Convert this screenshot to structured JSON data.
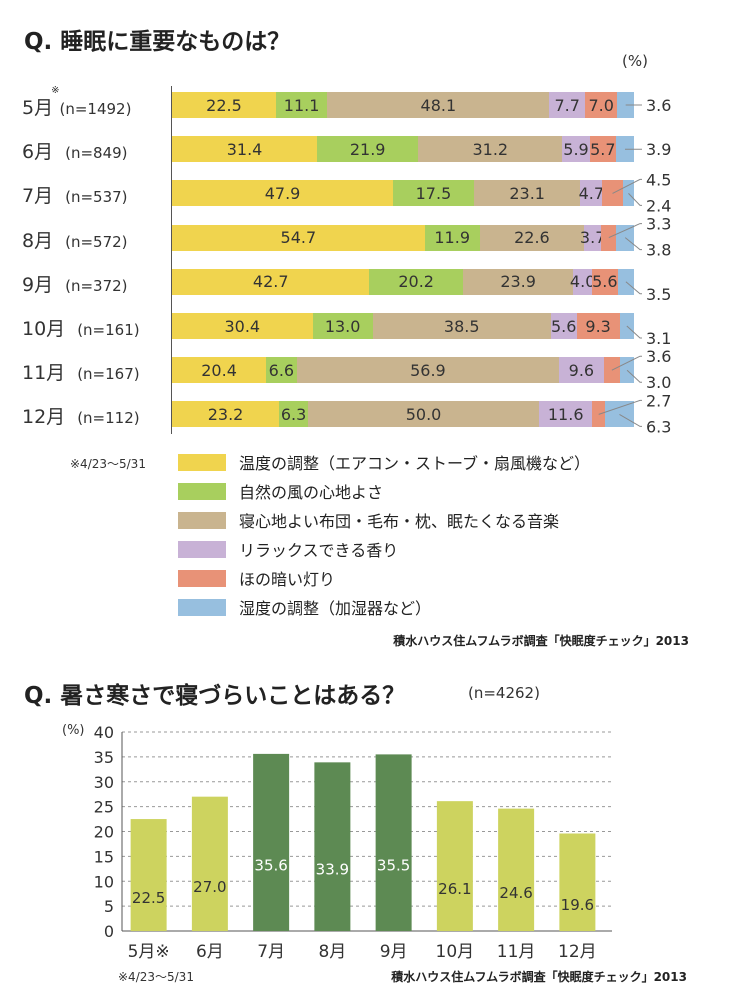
{
  "chart_data": [
    {
      "type": "bar",
      "orientation": "horizontal-stacked-100",
      "title": "Q. 睡眠に重要なものは？",
      "unit_label": "(%)",
      "rows": [
        {
          "month": "5月",
          "mark": "※",
          "n": "(n=1492)",
          "values": [
            22.5,
            11.1,
            48.1,
            7.7,
            7.0,
            3.6
          ]
        },
        {
          "month": "6月",
          "mark": "",
          "n": "(n=849)",
          "values": [
            31.4,
            21.9,
            31.2,
            5.9,
            5.7,
            3.9
          ]
        },
        {
          "month": "7月",
          "mark": "",
          "n": "(n=537)",
          "values": [
            47.9,
            17.5,
            23.1,
            4.7,
            4.5,
            2.4
          ]
        },
        {
          "month": "8月",
          "mark": "",
          "n": "(n=572)",
          "values": [
            54.7,
            11.9,
            22.6,
            3.7,
            3.3,
            3.8
          ]
        },
        {
          "month": "9月",
          "mark": "",
          "n": "(n=372)",
          "values": [
            42.7,
            20.2,
            23.9,
            4.0,
            5.6,
            3.5
          ]
        },
        {
          "month": "10月",
          "mark": "",
          "n": "(n=161)",
          "values": [
            30.4,
            13.0,
            38.5,
            5.6,
            9.3,
            3.1
          ]
        },
        {
          "month": "11月",
          "mark": "",
          "n": "(n=167)",
          "values": [
            20.4,
            6.6,
            56.9,
            9.6,
            3.6,
            3.0
          ]
        },
        {
          "month": "12月",
          "mark": "",
          "n": "(n=112)",
          "values": [
            23.2,
            6.3,
            50.0,
            11.6,
            2.7,
            6.3
          ]
        }
      ],
      "series": [
        {
          "name": "温度の調整（エアコン・ストーブ・扇風機など）",
          "color": "#f0d44e"
        },
        {
          "name": "自然の風の心地よさ",
          "color": "#a8cf5e"
        },
        {
          "name": "寝心地よい布団・毛布・枕、眠たくなる音楽",
          "color": "#c9b48f"
        },
        {
          "name": "リラックスできる香り",
          "color": "#c8b2d6"
        },
        {
          "name": "ほの暗い灯り",
          "color": "#e89277"
        },
        {
          "name": "湿度の調整（加湿器など）",
          "color": "#97bfdf"
        }
      ],
      "xlim": [
        0,
        100
      ],
      "legend": "bottom",
      "footnote": "※4/23〜5/31",
      "source": "積水ハウス住ムフムラボ調査「快眠度チェック」2013"
    },
    {
      "type": "bar",
      "title": "Q. 暑さ寒さで寝づらいことはある？",
      "n_label": "(n=4262)",
      "unit_label": "(%)",
      "categories": [
        "5月※",
        "6月",
        "7月",
        "8月",
        "9月",
        "10月",
        "11月",
        "12月"
      ],
      "values": [
        22.5,
        27.0,
        35.6,
        33.9,
        35.5,
        26.1,
        24.6,
        19.6
      ],
      "value_labels": [
        "22.5",
        "27.0",
        "35.6",
        "33.9",
        "35.5",
        "26.1",
        "24.6",
        "19.6"
      ],
      "highlight": [
        false,
        false,
        true,
        true,
        true,
        false,
        false,
        false
      ],
      "ylim": [
        0,
        40
      ],
      "yticks": [
        "0",
        "5",
        "10",
        "15",
        "20",
        "25",
        "30",
        "35",
        "40"
      ],
      "grid": true,
      "colors": {
        "normal": "#cdd35f",
        "highlight": "#5d8a53"
      },
      "footnote": "※4/23〜5/31",
      "source": "積水ハウス住ムフムラボ調査「快眠度チェック」2013"
    }
  ]
}
